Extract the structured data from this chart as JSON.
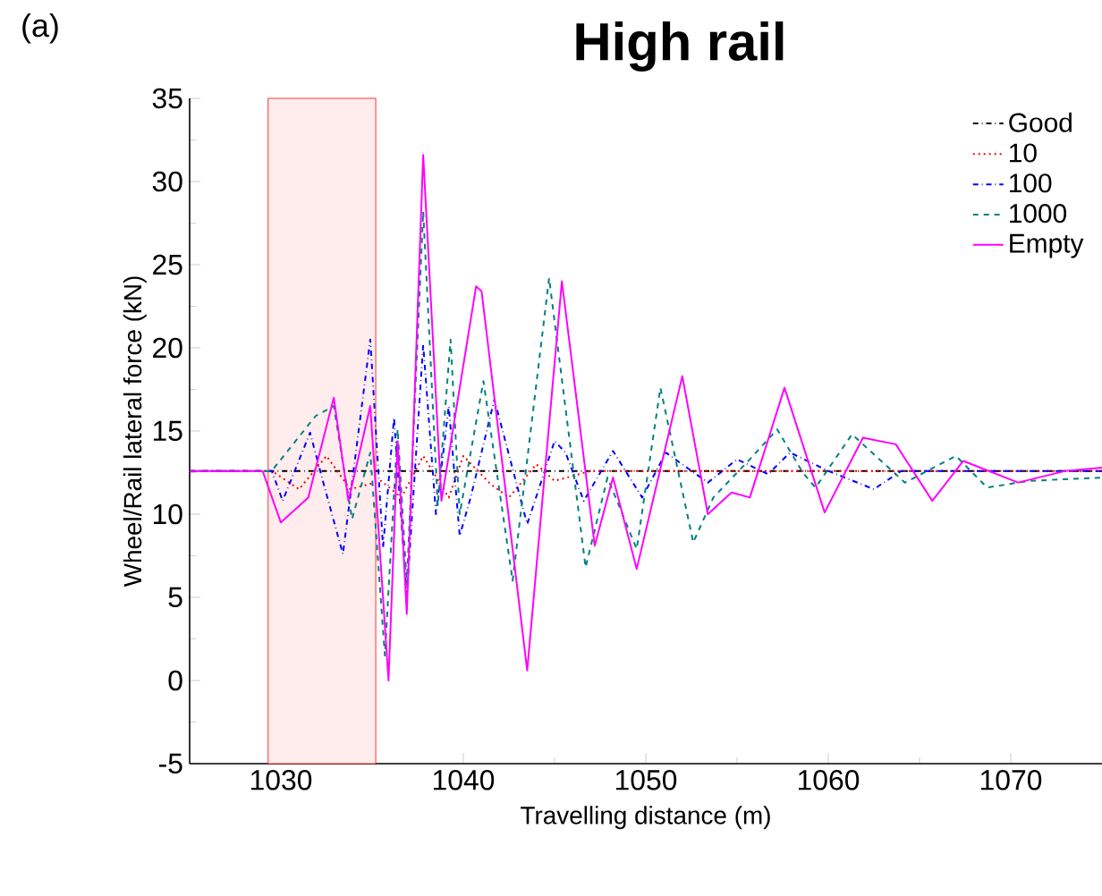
{
  "chart_data": {
    "type": "line",
    "title": "High rail",
    "xlabel": "Travelling distance (m)",
    "ylabel": "Wheel/Rail lateral force (kN)",
    "annotations": [
      "(a)"
    ],
    "xlim": [
      1025,
      1075
    ],
    "xticks": [
      1030,
      1040,
      1050,
      1060,
      1070
    ],
    "ylim": [
      -5,
      35
    ],
    "yticks": [
      -5,
      0,
      5,
      10,
      15,
      20,
      25,
      30,
      35
    ],
    "legend": "top right",
    "bands": [
      {
        "axis": "x",
        "from": 1029.3,
        "to": 1035.2,
        "color": "#ff0000"
      }
    ],
    "series": [
      {
        "name": "Good",
        "color": "#000000",
        "line_style": "dashdot",
        "x": [
          1025,
          1035,
          1045,
          1055,
          1065,
          1075
        ],
        "values": [
          12.6,
          12.6,
          12.6,
          12.6,
          12.6,
          12.6
        ]
      },
      {
        "name": "10",
        "color": "#ff0000",
        "line_style": "dotted",
        "x": [
          1025,
          1029.5,
          1031,
          1032.5,
          1033.8,
          1035.5,
          1036.6,
          1037.8,
          1039.2,
          1040,
          1041.5,
          1042.5,
          1044,
          1045,
          1047,
          1075
        ],
        "values": [
          12.6,
          12.6,
          11.5,
          13.5,
          11.5,
          12.0,
          11.0,
          13.5,
          11.0,
          13.5,
          11.8,
          11.0,
          13.0,
          12.0,
          12.6,
          12.6
        ]
      },
      {
        "name": "100",
        "color": "#0000ff",
        "line_style": "dashdot",
        "x": [
          1025,
          1029.5,
          1030.1,
          1031.6,
          1032.3,
          1033.4,
          1034.9,
          1035.6,
          1036.2,
          1036.9,
          1037.8,
          1038.5,
          1039.2,
          1039.8,
          1040.4,
          1041.7,
          1043.5,
          1045,
          1045.6,
          1046.6,
          1048.2,
          1049.8,
          1051.1,
          1053.4,
          1055,
          1056.7,
          1057.9,
          1060,
          1062.5,
          1064,
          1075
        ],
        "values": [
          12.6,
          12.6,
          10.8,
          14.9,
          12.0,
          7.6,
          20.5,
          8.0,
          15.8,
          5.1,
          20.2,
          10.0,
          16.5,
          8.7,
          11.0,
          16.9,
          9.4,
          14.4,
          13.7,
          10.8,
          13.8,
          11.0,
          13.7,
          11.9,
          13.3,
          12.4,
          13.7,
          12.6,
          11.5,
          12.6,
          12.6
        ]
      },
      {
        "name": "1000",
        "color": "#008080",
        "line_style": "dashed",
        "x": [
          1025,
          1029.5,
          1031.9,
          1032.9,
          1033.9,
          1034.9,
          1035.7,
          1036.4,
          1036.9,
          1037.8,
          1038.6,
          1039.3,
          1039.8,
          1041.1,
          1042.7,
          1044.7,
          1046.7,
          1047.9,
          1049.5,
          1050.8,
          1052.6,
          1053.7,
          1055.7,
          1057.2,
          1058.6,
          1059.3,
          1061.3,
          1064.2,
          1067,
          1068.7,
          1071,
          1075
        ],
        "values": [
          12.6,
          12.6,
          15.9,
          16.5,
          9.7,
          13.7,
          1.5,
          15.1,
          5.8,
          28.2,
          10.5,
          20.5,
          10.0,
          18.0,
          6.0,
          24.2,
          6.8,
          12.2,
          7.9,
          17.6,
          8.3,
          11.0,
          13.3,
          15.1,
          12.5,
          11.6,
          14.8,
          11.9,
          13.5,
          11.6,
          12.0,
          12.2
        ]
      },
      {
        "name": "Empty",
        "color": "#ff00ff",
        "line_style": "solid",
        "x": [
          1025,
          1029,
          1030,
          1031.5,
          1032.9,
          1033.7,
          1034.9,
          1035.9,
          1036.4,
          1036.9,
          1037.8,
          1038.8,
          1040.7,
          1041.0,
          1043.5,
          1045.4,
          1047.2,
          1048.2,
          1049.5,
          1052,
          1053.4,
          1054.7,
          1055.7,
          1057.6,
          1059.8,
          1061.9,
          1063.7,
          1065.7,
          1067.4,
          1070.4,
          1073,
          1075
        ],
        "values": [
          12.6,
          12.6,
          9.5,
          11.0,
          17.0,
          10.8,
          16.5,
          0.0,
          14.4,
          4.0,
          31.6,
          10.8,
          23.7,
          23.4,
          0.6,
          24.0,
          8.1,
          12.2,
          6.7,
          18.3,
          10.0,
          11.3,
          11.0,
          17.6,
          10.1,
          14.6,
          14.2,
          10.8,
          13.2,
          11.9,
          12.6,
          12.8
        ]
      }
    ]
  }
}
